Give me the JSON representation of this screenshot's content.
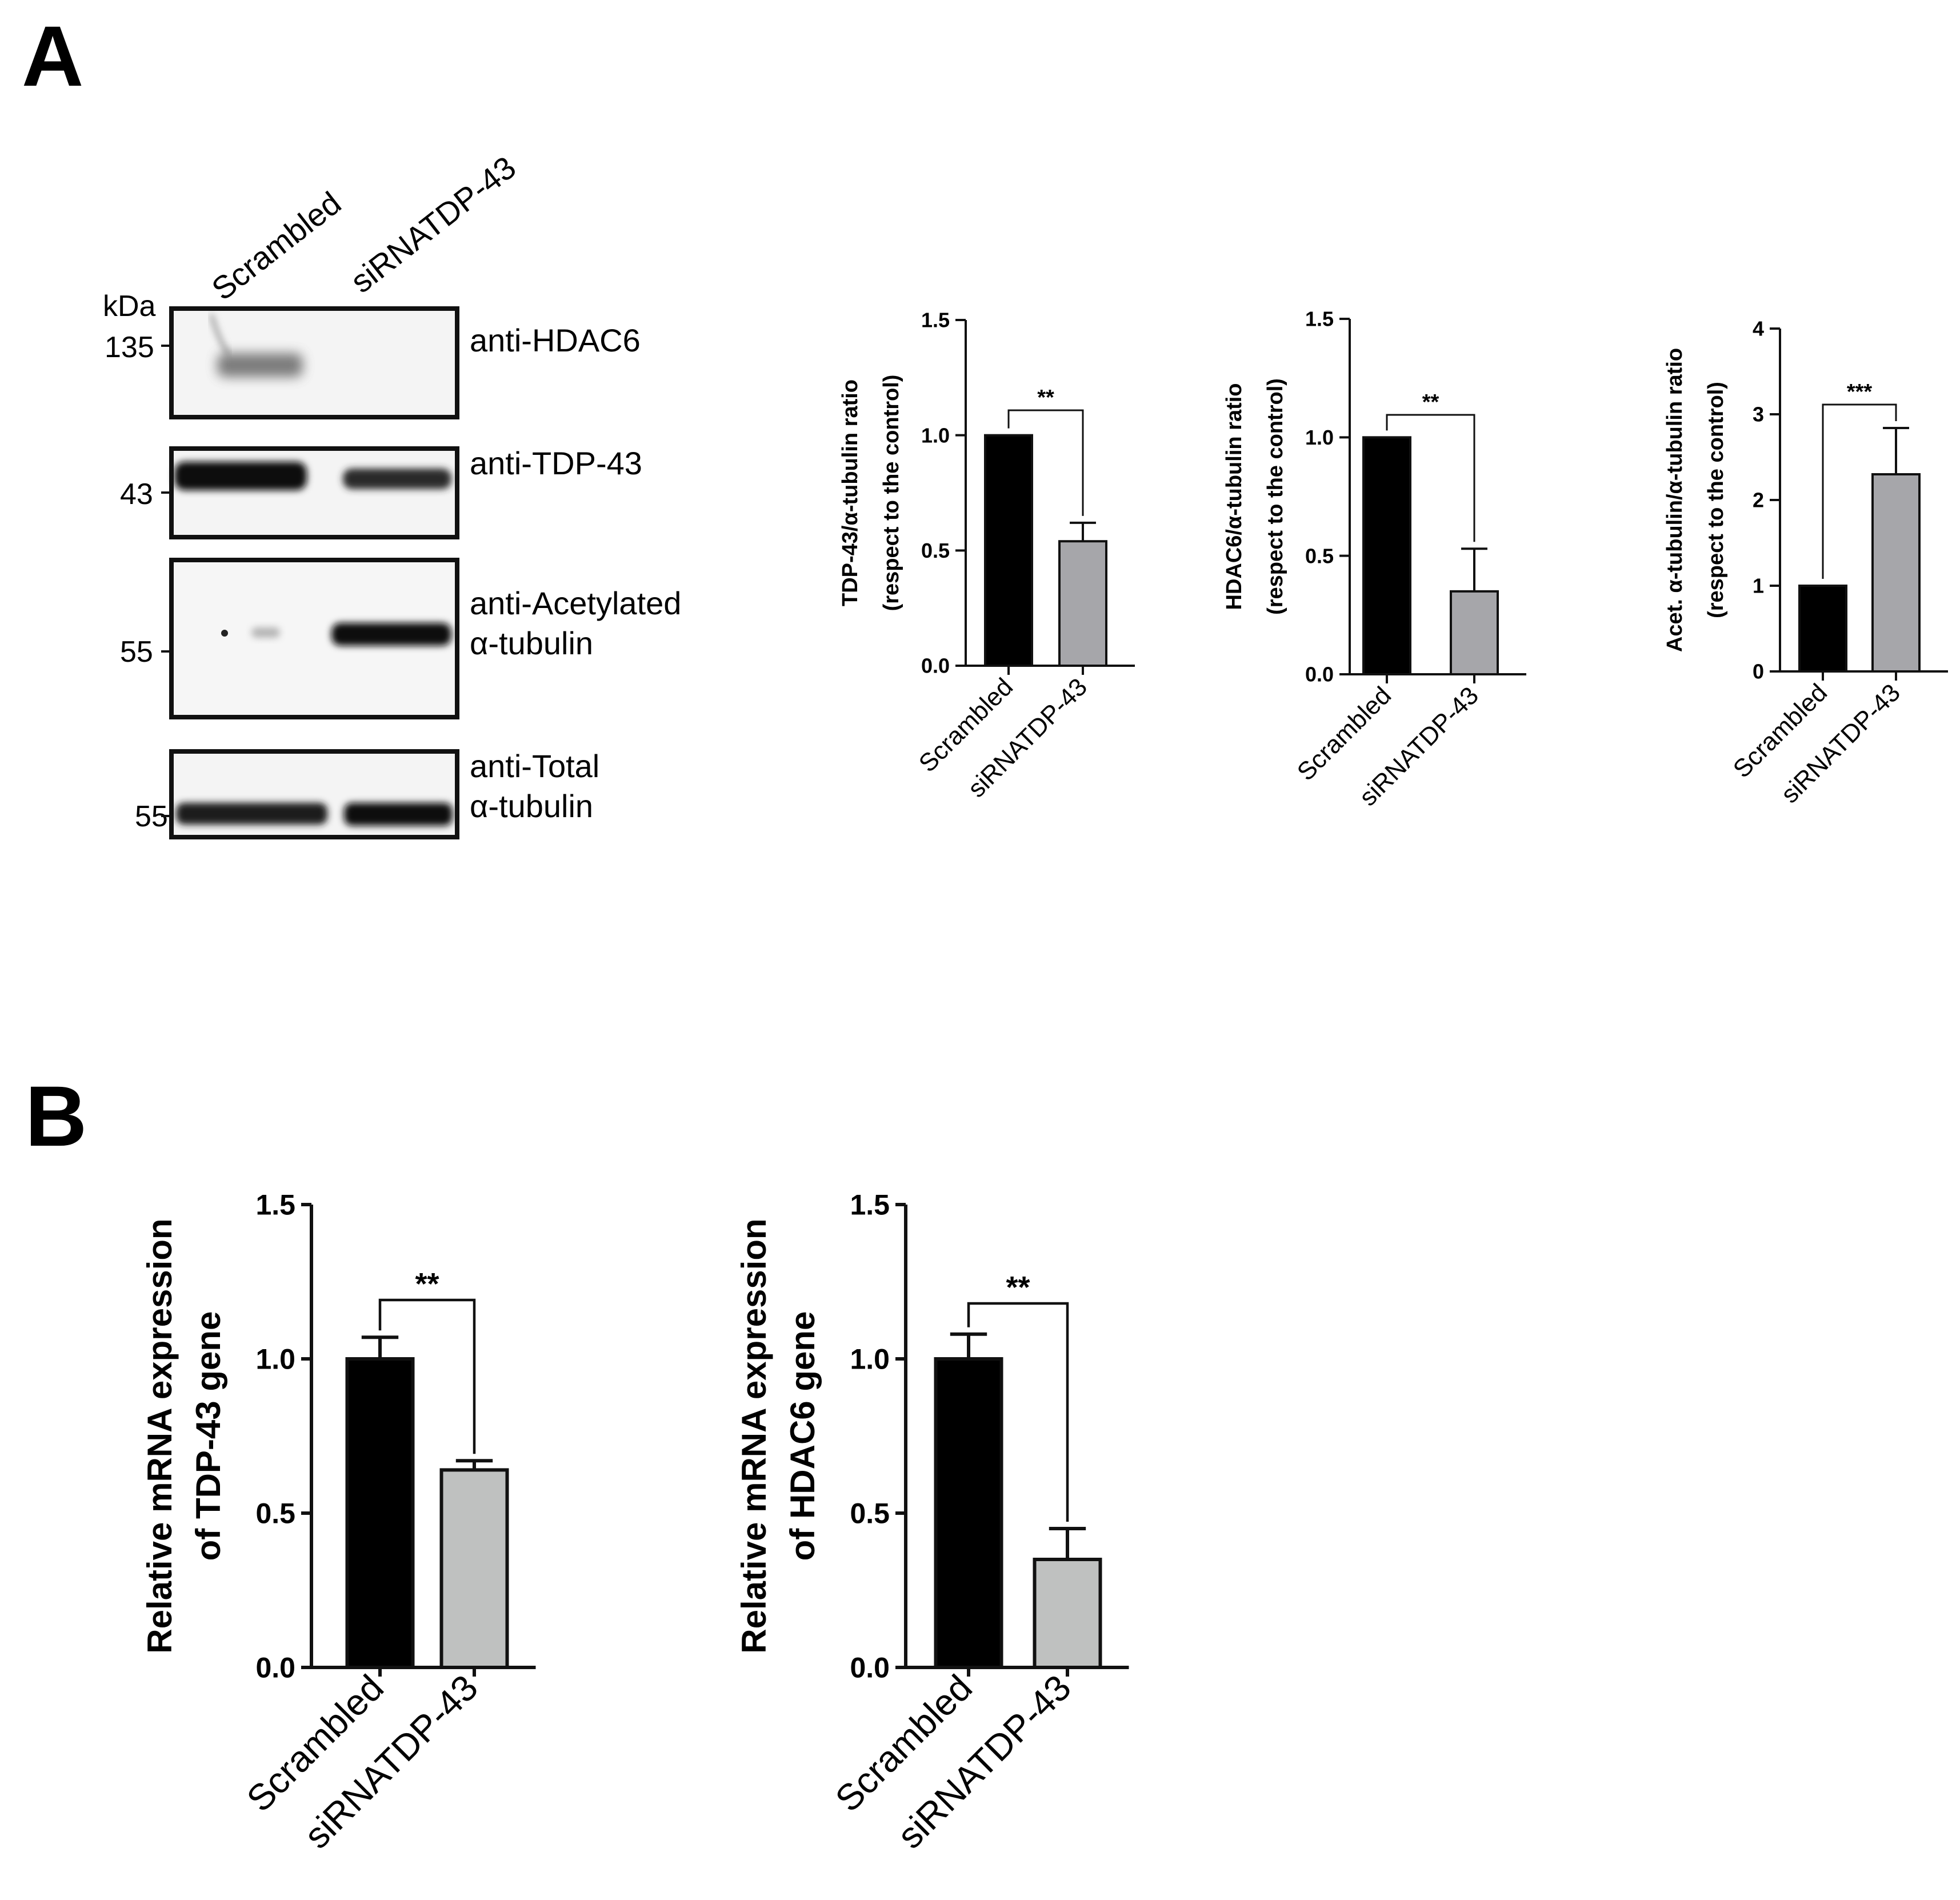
{
  "figure": {
    "panels": [
      {
        "letter": "A"
      },
      {
        "letter": "B"
      }
    ]
  },
  "blot": {
    "lanes": [
      "Scrambled",
      "siRNATDP-43"
    ],
    "kda_label": "kDa",
    "markers": [
      "135",
      "43",
      "55",
      "55"
    ],
    "antibodies": [
      {
        "line1": "anti-HDAC6",
        "line2": ""
      },
      {
        "line1": "anti-TDP-43",
        "line2": ""
      },
      {
        "line1": "anti-Acetylated",
        "line2": "α-tubulin"
      },
      {
        "line1": "anti-Total",
        "line2": "α-tubulin"
      }
    ]
  },
  "colors": {
    "scrambled": "#000000",
    "sirna_small": "#a6a6aa",
    "sirna_large": "#bfc1c0",
    "axis": "#111111"
  },
  "chart_data": [
    {
      "panel": "A",
      "type": "bar",
      "categories": [
        "Scrambled",
        "siRNATDP-43"
      ],
      "values": [
        1.0,
        0.54
      ],
      "errors": [
        0,
        0.08
      ],
      "ylabel_lines": [
        "TDP-43/α-tubulin ratio",
        "(respect to the control)"
      ],
      "ylim": [
        0,
        1.5
      ],
      "ticks": [
        "0.0",
        "0.5",
        "1.0",
        "1.5"
      ],
      "significance": "**"
    },
    {
      "panel": "A",
      "type": "bar",
      "categories": [
        "Scrambled",
        "siRNATDP-43"
      ],
      "values": [
        1.0,
        0.35
      ],
      "errors": [
        0,
        0.18
      ],
      "ylabel_lines": [
        "HDAC6/α-tubulin ratio",
        "(respect to the control)"
      ],
      "ylim": [
        0,
        1.5
      ],
      "ticks": [
        "0.0",
        "0.5",
        "1.0",
        "1.5"
      ],
      "significance": "**"
    },
    {
      "panel": "A",
      "type": "bar",
      "categories": [
        "Scrambled",
        "siRNATDP-43"
      ],
      "values": [
        1.0,
        2.3
      ],
      "errors": [
        0,
        0.54
      ],
      "ylabel_lines": [
        "Acet. α-tubulin/α-tubulin ratio",
        "(respect to the control)"
      ],
      "ylim": [
        0,
        4
      ],
      "ticks": [
        "0",
        "1",
        "2",
        "3",
        "4"
      ],
      "significance": "***"
    },
    {
      "panel": "B",
      "type": "bar",
      "categories": [
        "Scrambled",
        "siRNATDP-43"
      ],
      "values": [
        1.0,
        0.64
      ],
      "errors": [
        0.07,
        0.03
      ],
      "ylabel_lines": [
        "Relative mRNA expression",
        "of TDP-43 gene"
      ],
      "ylim": [
        0,
        1.5
      ],
      "ticks": [
        "0.0",
        "0.5",
        "1.0",
        "1.5"
      ],
      "significance": "**"
    },
    {
      "panel": "B",
      "type": "bar",
      "categories": [
        "Scrambled",
        "siRNATDP-43"
      ],
      "values": [
        1.0,
        0.35
      ],
      "errors": [
        0.08,
        0.1
      ],
      "ylabel_lines": [
        "Relative mRNA expression",
        "of HDAC6 gene"
      ],
      "ylim": [
        0,
        1.5
      ],
      "ticks": [
        "0.0",
        "0.5",
        "1.0",
        "1.5"
      ],
      "significance": "**"
    }
  ]
}
